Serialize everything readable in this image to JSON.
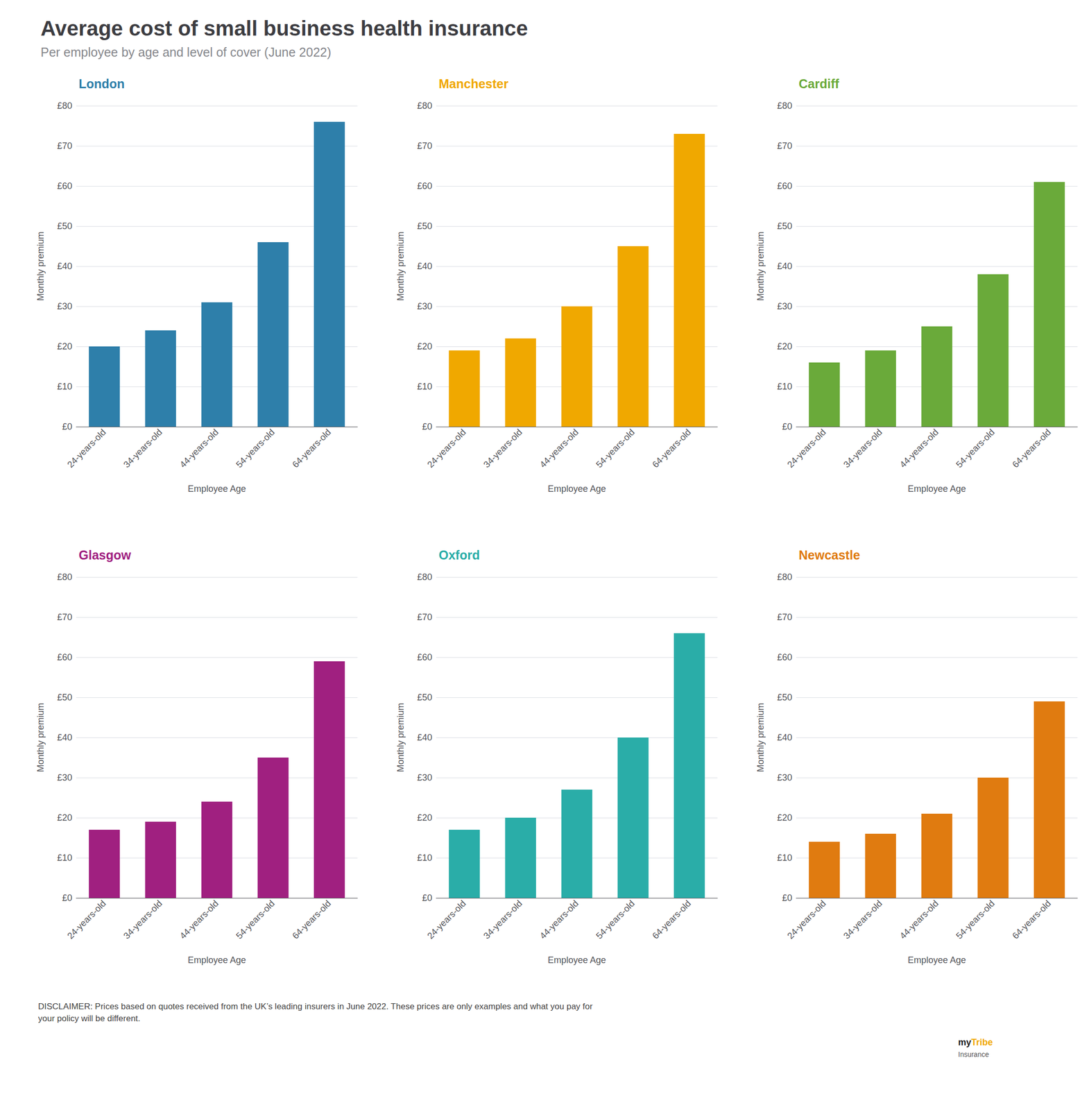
{
  "title": "Average cost of small business health insurance",
  "subtitle": "Per employee by age and level of cover (June 2022)",
  "annotations": [
    {
      "text": "DISCLAIMER: Prices based on quotes received from the UK’s leading insurers in June 2022. These prices are only examples and what you pay for\nyour policy will be different."
    },
    {
      "text": "my",
      "color": "#1a1a1a"
    },
    {
      "text": "Tribe",
      "color": "#f0a800"
    },
    {
      "text": "Insurance",
      "color": "#555555"
    }
  ],
  "chart_data": [
    {
      "type": "bar",
      "title": "London",
      "categories": [
        "24-years-old",
        "34-years-old",
        "44-years-old",
        "54-years-old",
        "64-years-old"
      ],
      "values": [
        20,
        24,
        31,
        46,
        76
      ],
      "color": "#2e7faa",
      "xlabel": "Employee Age",
      "ylabel": "Monthly premium",
      "ylim": [
        0,
        80
      ],
      "yticks": [
        {
          "value": 0,
          "label": "£0"
        },
        {
          "value": 10,
          "label": "£10"
        },
        {
          "value": 20,
          "label": "£20"
        },
        {
          "value": 30,
          "label": "£30"
        },
        {
          "value": 40,
          "label": "£40"
        },
        {
          "value": 50,
          "label": "£50"
        },
        {
          "value": 60,
          "label": "£60"
        },
        {
          "value": 70,
          "label": "£70"
        },
        {
          "value": 80,
          "label": "£80"
        }
      ],
      "grid": true
    },
    {
      "type": "bar",
      "title": "Manchester",
      "categories": [
        "24-years-old",
        "34-years-old",
        "44-years-old",
        "54-years-old",
        "64-years-old"
      ],
      "values": [
        19,
        22,
        30,
        45,
        73
      ],
      "color": "#f0a800",
      "xlabel": "Employee Age",
      "ylabel": "Monthly premium",
      "ylim": [
        0,
        80
      ],
      "yticks": [
        {
          "value": 0,
          "label": "£0"
        },
        {
          "value": 10,
          "label": "£10"
        },
        {
          "value": 20,
          "label": "£20"
        },
        {
          "value": 30,
          "label": "£30"
        },
        {
          "value": 40,
          "label": "£40"
        },
        {
          "value": 50,
          "label": "£50"
        },
        {
          "value": 60,
          "label": "£60"
        },
        {
          "value": 70,
          "label": "£70"
        },
        {
          "value": 80,
          "label": "£80"
        }
      ],
      "grid": true
    },
    {
      "type": "bar",
      "title": "Cardiff",
      "categories": [
        "24-years-old",
        "34-years-old",
        "44-years-old",
        "54-years-old",
        "64-years-old"
      ],
      "values": [
        16,
        19,
        25,
        38,
        61
      ],
      "color": "#6aaa3a",
      "xlabel": "Employee Age",
      "ylabel": "Monthly premium",
      "ylim": [
        0,
        80
      ],
      "yticks": [
        {
          "value": 0,
          "label": "£0"
        },
        {
          "value": 10,
          "label": "£10"
        },
        {
          "value": 20,
          "label": "£20"
        },
        {
          "value": 30,
          "label": "£30"
        },
        {
          "value": 40,
          "label": "£40"
        },
        {
          "value": 50,
          "label": "£50"
        },
        {
          "value": 60,
          "label": "£60"
        },
        {
          "value": 70,
          "label": "£70"
        },
        {
          "value": 80,
          "label": "£80"
        }
      ],
      "grid": true
    },
    {
      "type": "bar",
      "title": "Glasgow",
      "categories": [
        "24-years-old",
        "34-years-old",
        "44-years-old",
        "54-years-old",
        "64-years-old"
      ],
      "values": [
        17,
        19,
        24,
        35,
        59
      ],
      "color": "#a02080",
      "xlabel": "Employee Age",
      "ylabel": "Monthly premium",
      "ylim": [
        0,
        80
      ],
      "yticks": [
        {
          "value": 0,
          "label": "£0"
        },
        {
          "value": 10,
          "label": "£10"
        },
        {
          "value": 20,
          "label": "£20"
        },
        {
          "value": 30,
          "label": "£30"
        },
        {
          "value": 40,
          "label": "£40"
        },
        {
          "value": 50,
          "label": "£50"
        },
        {
          "value": 60,
          "label": "£60"
        },
        {
          "value": 70,
          "label": "£70"
        },
        {
          "value": 80,
          "label": "£80"
        }
      ],
      "grid": true
    },
    {
      "type": "bar",
      "title": "Oxford",
      "categories": [
        "24-years-old",
        "34-years-old",
        "44-years-old",
        "54-years-old",
        "64-years-old"
      ],
      "values": [
        17,
        20,
        27,
        40,
        66
      ],
      "color": "#2aada8",
      "xlabel": "Employee Age",
      "ylabel": "Monthly premium",
      "ylim": [
        0,
        80
      ],
      "yticks": [
        {
          "value": 0,
          "label": "£0"
        },
        {
          "value": 10,
          "label": "£10"
        },
        {
          "value": 20,
          "label": "£20"
        },
        {
          "value": 30,
          "label": "£30"
        },
        {
          "value": 40,
          "label": "£40"
        },
        {
          "value": 50,
          "label": "£50"
        },
        {
          "value": 60,
          "label": "£60"
        },
        {
          "value": 70,
          "label": "£70"
        },
        {
          "value": 80,
          "label": "£80"
        }
      ],
      "grid": true
    },
    {
      "type": "bar",
      "title": "Newcastle",
      "categories": [
        "24-years-old",
        "34-years-old",
        "44-years-old",
        "54-years-old",
        "64-years-old"
      ],
      "values": [
        14,
        16,
        21,
        30,
        49
      ],
      "color": "#e07b10",
      "xlabel": "Employee Age",
      "ylabel": "Monthly premium",
      "ylim": [
        0,
        80
      ],
      "yticks": [
        {
          "value": 0,
          "label": "£0"
        },
        {
          "value": 10,
          "label": "£10"
        },
        {
          "value": 20,
          "label": "£20"
        },
        {
          "value": 30,
          "label": "£30"
        },
        {
          "value": 40,
          "label": "£40"
        },
        {
          "value": 50,
          "label": "£50"
        },
        {
          "value": 60,
          "label": "£60"
        },
        {
          "value": 70,
          "label": "£70"
        },
        {
          "value": 80,
          "label": "£80"
        }
      ],
      "grid": true
    }
  ]
}
